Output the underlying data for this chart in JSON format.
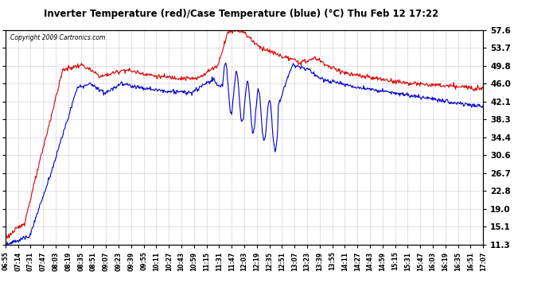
{
  "title": "Inverter Temperature (red)/Case Temperature (blue) (°C) Thu Feb 12 17:22",
  "copyright": "Copyright 2009 Cartronics.com",
  "background_color": "#ffffff",
  "plot_bg_color": "#ffffff",
  "grid_color": "#bbbbcc",
  "red_color": "#dd0000",
  "blue_color": "#0000cc",
  "yticks": [
    11.3,
    15.1,
    19.0,
    22.8,
    26.7,
    30.6,
    34.4,
    38.3,
    42.1,
    46.0,
    49.8,
    53.7,
    57.6
  ],
  "ymin": 11.3,
  "ymax": 57.6,
  "xtick_labels": [
    "06:55",
    "07:14",
    "07:31",
    "07:47",
    "08:03",
    "08:19",
    "08:35",
    "08:51",
    "09:07",
    "09:23",
    "09:39",
    "09:55",
    "10:11",
    "10:27",
    "10:43",
    "10:59",
    "11:15",
    "11:31",
    "11:47",
    "12:03",
    "12:19",
    "12:35",
    "12:51",
    "13:07",
    "13:23",
    "13:39",
    "13:55",
    "14:11",
    "14:27",
    "14:43",
    "14:59",
    "15:15",
    "15:31",
    "15:47",
    "16:03",
    "16:19",
    "16:35",
    "16:51",
    "17:07"
  ]
}
